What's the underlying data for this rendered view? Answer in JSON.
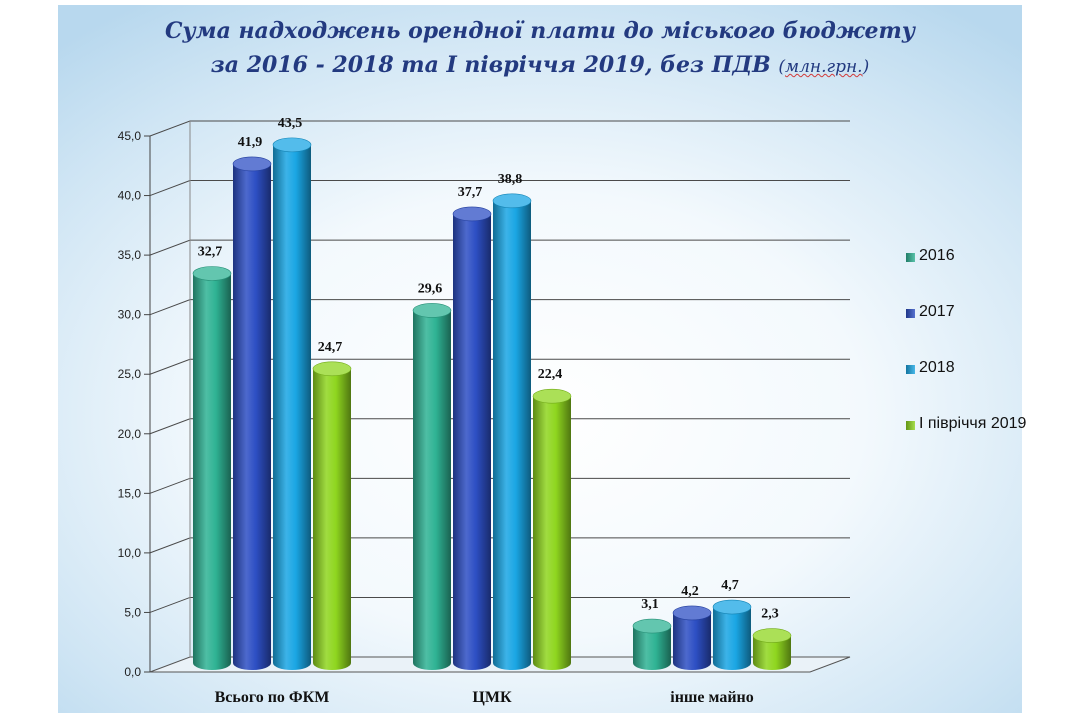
{
  "title": {
    "line1": "Сума надходжень орендної плати до міського бюджету",
    "line2": "за 2016 - 2018 та І півріччя 2019, без ПДВ",
    "unit": "млн.грн."
  },
  "chart_data": {
    "type": "bar",
    "categories": [
      "Всього по ФКМ",
      "ЦМК",
      "інше майно"
    ],
    "series": [
      {
        "name": "2016",
        "values": [
          32.7,
          29.6,
          3.1
        ],
        "labels": [
          "32,7",
          "29,6",
          "3,1"
        ],
        "color": "#2fb394"
      },
      {
        "name": "2017",
        "values": [
          41.9,
          37.7,
          4.2
        ],
        "labels": [
          "41,9",
          "37,7",
          "4,2"
        ],
        "color": "#2d4fc4"
      },
      {
        "name": "2018",
        "values": [
          43.5,
          38.8,
          4.7
        ],
        "labels": [
          "43,5",
          "38,8",
          "4,7"
        ],
        "color": "#1aa6e4"
      },
      {
        "name": "І півріччя 2019",
        "values": [
          24.7,
          22.4,
          2.3
        ],
        "labels": [
          "24,7",
          "22,4",
          "2,3"
        ],
        "color": "#8fd61f"
      }
    ],
    "ylim": [
      0,
      45
    ],
    "yticks": [
      "0,0",
      "5,0",
      "10,0",
      "15,0",
      "20,0",
      "25,0",
      "30,0",
      "35,0",
      "40,0",
      "45,0"
    ],
    "grid": true,
    "legend": "right"
  }
}
